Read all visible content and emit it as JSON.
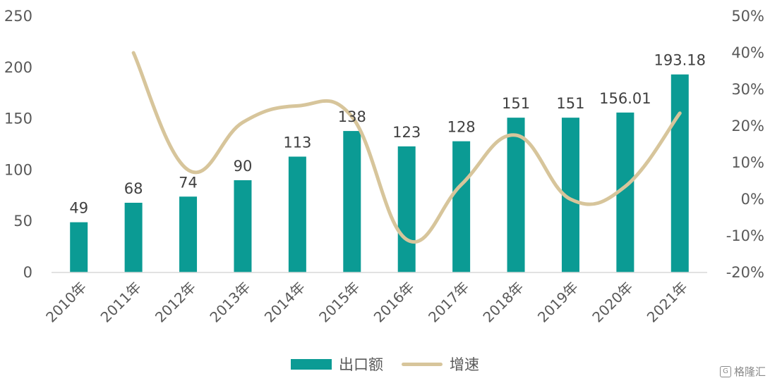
{
  "colors": {
    "bar": "#0b9b94",
    "line": "#d7c59b",
    "axis": "#d9d9d9",
    "text": "#595959"
  },
  "chart_data": {
    "type": "bar",
    "categories": [
      "2010年",
      "2011年",
      "2012年",
      "2013年",
      "2014年",
      "2015年",
      "2016年",
      "2017年",
      "2018年",
      "2019年",
      "2020年",
      "2021年"
    ],
    "series": [
      {
        "name": "出口额",
        "type": "bar",
        "axis": "left",
        "values": [
          49,
          68,
          74,
          90,
          113,
          138,
          123,
          128,
          151,
          151,
          156.01,
          193.18
        ],
        "labels": [
          "49",
          "68",
          "74",
          "90",
          "113",
          "138",
          "123",
          "128",
          "151",
          "151",
          "156.01",
          "193.18"
        ]
      },
      {
        "name": "增速",
        "type": "line",
        "axis": "right",
        "smooth": true,
        "values": [
          null,
          40,
          8,
          21,
          25.5,
          22.5,
          -11,
          4,
          17.5,
          0,
          3.5,
          23.5
        ]
      }
    ],
    "y_left": {
      "min": 0,
      "max": 250,
      "ticks": [
        "0",
        "50",
        "100",
        "150",
        "200",
        "250"
      ]
    },
    "y_right": {
      "min": -20,
      "max": 50,
      "ticks": [
        "-20%",
        "-10%",
        "0%",
        "10%",
        "20%",
        "30%",
        "40%",
        "50%"
      ]
    },
    "legend": {
      "position": "bottom",
      "items": [
        "出口额",
        "增速"
      ]
    },
    "grid": false
  },
  "watermark": {
    "text": "格隆汇",
    "icon": "G"
  }
}
